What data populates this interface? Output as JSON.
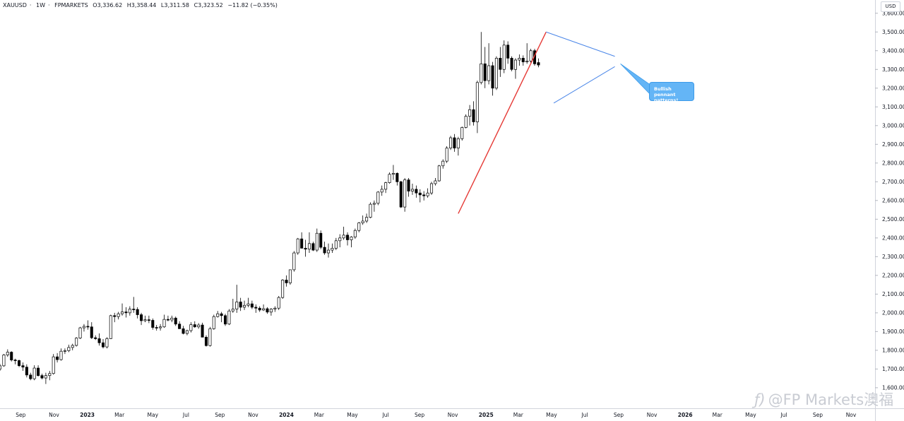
{
  "header": {
    "symbol": "XAUUSD",
    "interval": "1W",
    "broker": "FPMARKETS",
    "open": "O3,336.62",
    "high": "H3,358.44",
    "low": "L3,311.58",
    "close": "C3,323.52",
    "change": "−11.82 (−0.35%)"
  },
  "currency": "USD",
  "annotation": {
    "text_line1": "Bullish pennant",
    "text_line2": "patterns!"
  },
  "watermark": {
    "icon": "ƒ)",
    "text": "@FP Markets澳福"
  },
  "colors": {
    "up": "#ffffff",
    "down": "#000000",
    "wick": "#000000",
    "impulse_line": "#e53935",
    "pennant_line": "#4a86e8",
    "callout": "#64b5f6"
  },
  "chart_data": {
    "type": "candlestick",
    "title": "",
    "xlabel": "",
    "ylabel": "",
    "timeframe": "1W",
    "ylim": [
      1560,
      3650
    ],
    "y_ticks": [
      1600,
      1700,
      1800,
      1900,
      2000,
      2100,
      2200,
      2300,
      2400,
      2500,
      2600,
      2700,
      2800,
      2900,
      3000,
      3100,
      3200,
      3300,
      3400,
      3500,
      3600
    ],
    "y_tick_labels": [
      "1,600.00",
      "1,700.00",
      "1,800.00",
      "1,900.00",
      "2,000.00",
      "2,100.00",
      "2,200.00",
      "2,300.00",
      "2,400.00",
      "2,500.00",
      "2,600.00",
      "2,700.00",
      "2,800.00",
      "2,900.00",
      "3,000.00",
      "3,100.00",
      "3,200.00",
      "3,300.00",
      "3,400.00",
      "3,500.00",
      "3,600.00"
    ],
    "x_ticks": [
      {
        "date": "2022-09-01",
        "label": "Sep",
        "bold": false
      },
      {
        "date": "2022-11-01",
        "label": "Nov",
        "bold": false
      },
      {
        "date": "2023-01-01",
        "label": "2023",
        "bold": true
      },
      {
        "date": "2023-03-01",
        "label": "Mar",
        "bold": false
      },
      {
        "date": "2023-05-01",
        "label": "May",
        "bold": false
      },
      {
        "date": "2023-07-01",
        "label": "Jul",
        "bold": false
      },
      {
        "date": "2023-09-01",
        "label": "Sep",
        "bold": false
      },
      {
        "date": "2023-11-01",
        "label": "Nov",
        "bold": false
      },
      {
        "date": "2024-01-01",
        "label": "2024",
        "bold": true
      },
      {
        "date": "2024-03-01",
        "label": "Mar",
        "bold": false
      },
      {
        "date": "2024-05-01",
        "label": "May",
        "bold": false
      },
      {
        "date": "2024-07-01",
        "label": "Jul",
        "bold": false
      },
      {
        "date": "2024-09-01",
        "label": "Sep",
        "bold": false
      },
      {
        "date": "2024-11-01",
        "label": "Nov",
        "bold": false
      },
      {
        "date": "2025-01-01",
        "label": "2025",
        "bold": true
      },
      {
        "date": "2025-03-01",
        "label": "Mar",
        "bold": false
      },
      {
        "date": "2025-05-01",
        "label": "May",
        "bold": false
      },
      {
        "date": "2025-07-01",
        "label": "Jul",
        "bold": false
      },
      {
        "date": "2025-09-01",
        "label": "Sep",
        "bold": false
      },
      {
        "date": "2025-11-01",
        "label": "Nov",
        "bold": false
      },
      {
        "date": "2026-01-01",
        "label": "2026",
        "bold": true
      },
      {
        "date": "2026-03-01",
        "label": "Mar",
        "bold": false
      },
      {
        "date": "2026-05-01",
        "label": "May",
        "bold": false
      },
      {
        "date": "2026-07-01",
        "label": "Jul",
        "bold": false
      },
      {
        "date": "2026-09-01",
        "label": "Sep",
        "bold": false
      },
      {
        "date": "2026-11-01",
        "label": "Nov",
        "bold": false
      }
    ],
    "xlim": [
      "2022-07-25",
      "2026-12-15"
    ],
    "first_week": "2022-07-25",
    "candles": [
      [
        1700,
        1727,
        1690,
        1717
      ],
      [
        1717,
        1780,
        1712,
        1775
      ],
      [
        1775,
        1805,
        1765,
        1790
      ],
      [
        1790,
        1795,
        1740,
        1748
      ],
      [
        1748,
        1755,
        1725,
        1745
      ],
      [
        1745,
        1750,
        1710,
        1718
      ],
      [
        1718,
        1735,
        1690,
        1710
      ],
      [
        1710,
        1725,
        1655,
        1668
      ],
      [
        1668,
        1680,
        1640,
        1648
      ],
      [
        1648,
        1720,
        1640,
        1705
      ],
      [
        1705,
        1720,
        1660,
        1665
      ],
      [
        1665,
        1675,
        1645,
        1652
      ],
      [
        1652,
        1680,
        1620,
        1665
      ],
      [
        1665,
        1690,
        1640,
        1676
      ],
      [
        1676,
        1780,
        1670,
        1765
      ],
      [
        1765,
        1785,
        1735,
        1750
      ],
      [
        1750,
        1810,
        1745,
        1795
      ],
      [
        1795,
        1810,
        1780,
        1798
      ],
      [
        1798,
        1830,
        1790,
        1815
      ],
      [
        1815,
        1835,
        1800,
        1826
      ],
      [
        1826,
        1870,
        1820,
        1865
      ],
      [
        1865,
        1925,
        1860,
        1920
      ],
      [
        1920,
        1940,
        1900,
        1928
      ],
      [
        1928,
        1960,
        1910,
        1925
      ],
      [
        1925,
        1950,
        1860,
        1867
      ],
      [
        1867,
        1880,
        1855,
        1862
      ],
      [
        1862,
        1890,
        1825,
        1840
      ],
      [
        1840,
        1860,
        1810,
        1818
      ],
      [
        1818,
        1870,
        1810,
        1862
      ],
      [
        1862,
        1990,
        1860,
        1985
      ],
      [
        1985,
        2000,
        1950,
        1980
      ],
      [
        1980,
        2005,
        1965,
        1995
      ],
      [
        1995,
        2050,
        1985,
        2005
      ],
      [
        2005,
        2030,
        1975,
        2000
      ],
      [
        2000,
        2035,
        1985,
        2020
      ],
      [
        2020,
        2085,
        2000,
        2018
      ],
      [
        2018,
        2030,
        1970,
        1990
      ],
      [
        1990,
        2000,
        1935,
        1958
      ],
      [
        1958,
        1985,
        1950,
        1963
      ],
      [
        1963,
        1985,
        1945,
        1960
      ],
      [
        1960,
        1970,
        1910,
        1922
      ],
      [
        1922,
        1935,
        1905,
        1920
      ],
      [
        1920,
        1940,
        1905,
        1925
      ],
      [
        1925,
        1990,
        1920,
        1965
      ],
      [
        1965,
        1985,
        1955,
        1962
      ],
      [
        1962,
        1985,
        1950,
        1972
      ],
      [
        1972,
        1980,
        1930,
        1940
      ],
      [
        1940,
        1955,
        1915,
        1915
      ],
      [
        1915,
        1930,
        1885,
        1890
      ],
      [
        1890,
        1910,
        1880,
        1905
      ],
      [
        1905,
        1950,
        1895,
        1937
      ],
      [
        1937,
        1955,
        1920,
        1925
      ],
      [
        1925,
        1945,
        1915,
        1935
      ],
      [
        1935,
        1947,
        1890,
        1870
      ],
      [
        1870,
        1880,
        1820,
        1825
      ],
      [
        1825,
        1925,
        1820,
        1915
      ],
      [
        1915,
        1990,
        1910,
        1980
      ],
      [
        1980,
        2010,
        1975,
        1995
      ],
      [
        1995,
        2005,
        1950,
        1985
      ],
      [
        1985,
        1995,
        1930,
        1940
      ],
      [
        1940,
        2020,
        1935,
        2010
      ],
      [
        2010,
        2075,
        2000,
        2020
      ],
      [
        2020,
        2150,
        2000,
        2058
      ],
      [
        2058,
        2080,
        2010,
        2030
      ],
      [
        2030,
        2065,
        2015,
        2040
      ],
      [
        2040,
        2080,
        2030,
        2048
      ],
      [
        2048,
        2065,
        2020,
        2030
      ],
      [
        2030,
        2045,
        2000,
        2025
      ],
      [
        2025,
        2035,
        2005,
        2015
      ],
      [
        2015,
        2045,
        2010,
        2022
      ],
      [
        2022,
        2030,
        1995,
        2004
      ],
      [
        2004,
        2025,
        1985,
        2020
      ],
      [
        2020,
        2035,
        2005,
        2025
      ],
      [
        2025,
        2090,
        2015,
        2082
      ],
      [
        2082,
        2180,
        2075,
        2175
      ],
      [
        2175,
        2200,
        2140,
        2160
      ],
      [
        2160,
        2225,
        2150,
        2230
      ],
      [
        2230,
        2330,
        2220,
        2320
      ],
      [
        2320,
        2400,
        2310,
        2395
      ],
      [
        2395,
        2430,
        2350,
        2345
      ],
      [
        2345,
        2390,
        2300,
        2340
      ],
      [
        2340,
        2430,
        2320,
        2370
      ],
      [
        2370,
        2380,
        2330,
        2335
      ],
      [
        2335,
        2450,
        2325,
        2425
      ],
      [
        2425,
        2440,
        2340,
        2350
      ],
      [
        2350,
        2380,
        2310,
        2320
      ],
      [
        2320,
        2370,
        2295,
        2335
      ],
      [
        2335,
        2370,
        2320,
        2345
      ],
      [
        2345,
        2400,
        2335,
        2385
      ],
      [
        2385,
        2420,
        2350,
        2400
      ],
      [
        2400,
        2460,
        2390,
        2415
      ],
      [
        2415,
        2430,
        2360,
        2390
      ],
      [
        2390,
        2410,
        2350,
        2405
      ],
      [
        2405,
        2450,
        2395,
        2440
      ],
      [
        2440,
        2485,
        2430,
        2480
      ],
      [
        2480,
        2520,
        2470,
        2490
      ],
      [
        2490,
        2530,
        2480,
        2510
      ],
      [
        2510,
        2590,
        2505,
        2580
      ],
      [
        2580,
        2600,
        2540,
        2585
      ],
      [
        2585,
        2650,
        2575,
        2645
      ],
      [
        2645,
        2680,
        2625,
        2660
      ],
      [
        2660,
        2700,
        2640,
        2695
      ],
      [
        2695,
        2750,
        2690,
        2740
      ],
      [
        2740,
        2790,
        2710,
        2745
      ],
      [
        2745,
        2750,
        2680,
        2700
      ],
      [
        2700,
        2705,
        2560,
        2565
      ],
      [
        2565,
        2720,
        2540,
        2710
      ],
      [
        2710,
        2720,
        2620,
        2650
      ],
      [
        2650,
        2690,
        2630,
        2660
      ],
      [
        2660,
        2680,
        2615,
        2640
      ],
      [
        2640,
        2660,
        2590,
        2630
      ],
      [
        2630,
        2650,
        2600,
        2625
      ],
      [
        2625,
        2665,
        2615,
        2640
      ],
      [
        2640,
        2700,
        2630,
        2690
      ],
      [
        2690,
        2720,
        2680,
        2705
      ],
      [
        2705,
        2790,
        2700,
        2785
      ],
      [
        2785,
        2820,
        2770,
        2810
      ],
      [
        2810,
        2890,
        2800,
        2880
      ],
      [
        2880,
        2945,
        2870,
        2935
      ],
      [
        2935,
        2955,
        2860,
        2880
      ],
      [
        2880,
        2940,
        2840,
        2930
      ],
      [
        2930,
        2995,
        2920,
        2990
      ],
      [
        2990,
        3060,
        2985,
        3050
      ],
      [
        3050,
        3110,
        3000,
        3085
      ],
      [
        3085,
        3130,
        3000,
        3020
      ],
      [
        3020,
        3240,
        2960,
        3230
      ],
      [
        3230,
        3500,
        3220,
        3330
      ],
      [
        3330,
        3420,
        3200,
        3240
      ],
      [
        3240,
        3440,
        3220,
        3320
      ],
      [
        3320,
        3340,
        3160,
        3200
      ],
      [
        3200,
        3370,
        3190,
        3360
      ],
      [
        3360,
        3420,
        3260,
        3300
      ],
      [
        3300,
        3455,
        3280,
        3430
      ],
      [
        3430,
        3450,
        3330,
        3360
      ],
      [
        3360,
        3370,
        3290,
        3300
      ],
      [
        3300,
        3360,
        3250,
        3350
      ],
      [
        3350,
        3380,
        3320,
        3360
      ],
      [
        3360,
        3375,
        3320,
        3340
      ],
      [
        3340,
        3440,
        3330,
        3345
      ],
      [
        3345,
        3410,
        3335,
        3400
      ],
      [
        3400,
        3410,
        3320,
        3330
      ],
      [
        3336.62,
        3358.44,
        3311.58,
        3323.52
      ]
    ],
    "drawings": {
      "impulse_line": {
        "from": [
          "2024-11-11",
          2530
        ],
        "to": [
          "2025-04-21",
          3500
        ]
      },
      "pennant_upper": {
        "from": [
          "2025-04-21",
          3500
        ],
        "to": [
          "2025-08-25",
          3370
        ]
      },
      "pennant_lower": {
        "from": [
          "2025-05-05",
          3120
        ],
        "to": [
          "2025-08-25",
          3315
        ]
      },
      "arrow": {
        "from": [
          "2025-08-25",
          3330
        ],
        "to": [
          "2025-10-10",
          3270
        ]
      }
    }
  }
}
